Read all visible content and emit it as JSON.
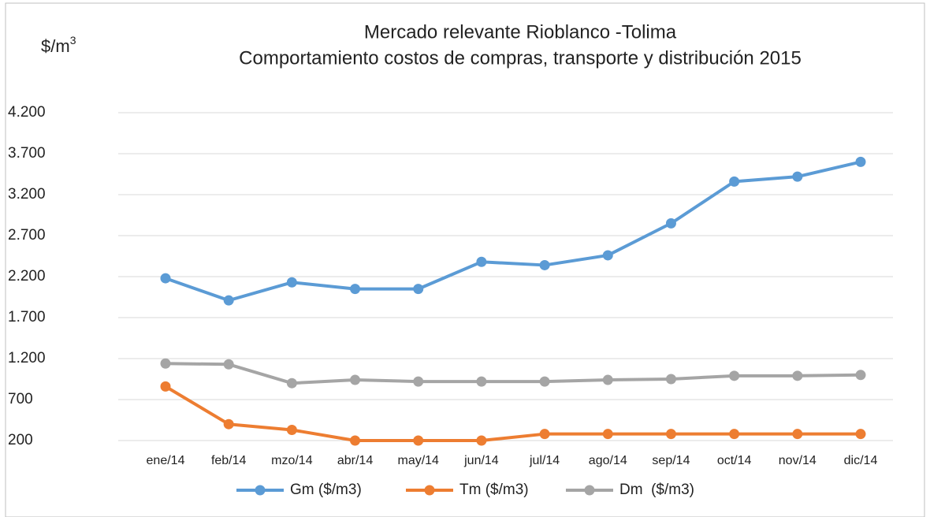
{
  "chart_data": {
    "type": "line",
    "title": "Mercado relevante Rioblanco -Tolima",
    "subtitle": "Comportamiento costos de compras, transporte y distribución 2015",
    "ylabel": "$/m",
    "ylabel_superscript": "3",
    "categories": [
      "ene/14",
      "feb/14",
      "mzo/14",
      "abr/14",
      "may/14",
      "jun/14",
      "jul/14",
      "ago/14",
      "sep/14",
      "oct/14",
      "nov/14",
      "dic/14"
    ],
    "series": [
      {
        "name": "Gm ($/m3)",
        "color": "#5b9bd5",
        "values": [
          2180,
          1910,
          2130,
          2050,
          2050,
          2380,
          2340,
          2460,
          2850,
          3360,
          3420,
          3600
        ]
      },
      {
        "name": "Tm ($/m3)",
        "color": "#ed7d31",
        "values": [
          860,
          400,
          330,
          200,
          200,
          200,
          280,
          280,
          280,
          280,
          280,
          280
        ]
      },
      {
        "name": "Dm  ($/m3)",
        "color": "#a5a5a5",
        "values": [
          1140,
          1130,
          900,
          940,
          920,
          920,
          920,
          940,
          950,
          990,
          990,
          1000
        ]
      }
    ],
    "ylim": [
      200,
      4200
    ],
    "yticks": [
      200,
      700,
      {
        "value": 1200,
        "label": "1.200"
      },
      {
        "value": 1700,
        "label": "1.700"
      },
      {
        "value": 2200,
        "label": "2.200"
      },
      {
        "value": 2700,
        "label": "2.700"
      },
      {
        "value": 3200,
        "label": "3.200"
      },
      {
        "value": 3700,
        "label": "3.700"
      },
      {
        "value": 4200,
        "label": "4.200"
      }
    ],
    "grid": true,
    "legend": "bottom"
  }
}
